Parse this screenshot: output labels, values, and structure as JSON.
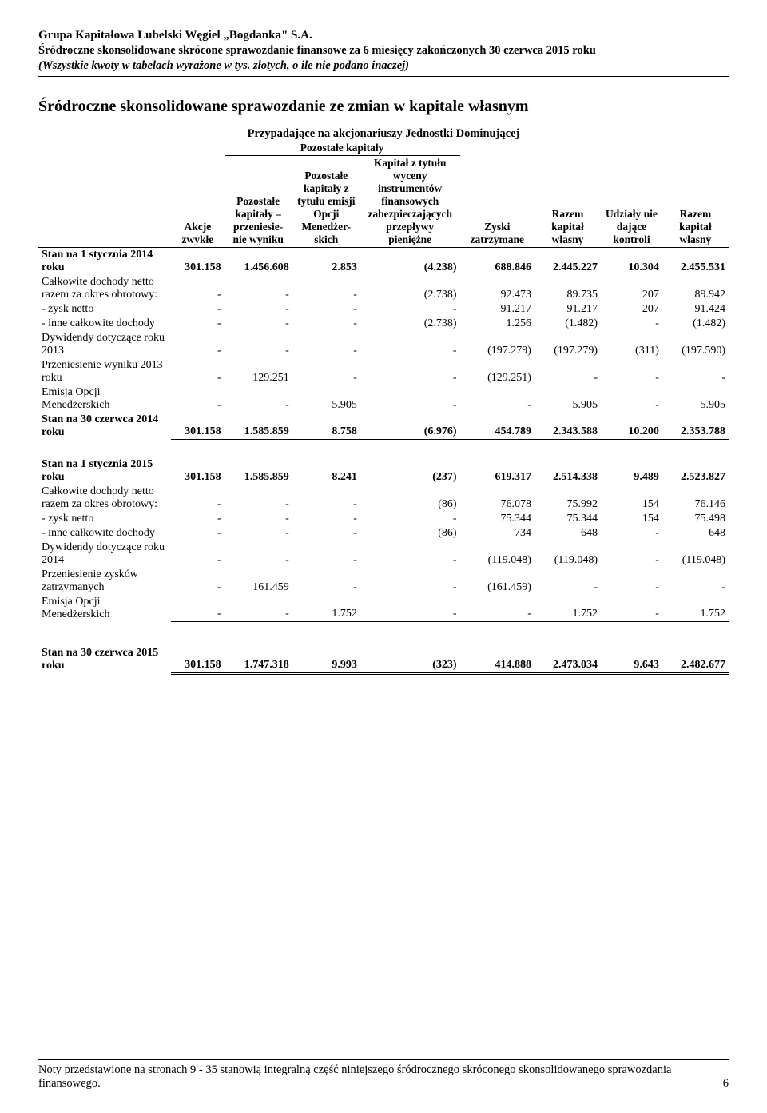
{
  "header": {
    "line1": "Grupa Kapitałowa Lubelski Węgiel „Bogdanka\" S.A.",
    "line2": "Śródroczne skonsolidowane skrócone sprawozdanie finansowe za 6 miesięcy zakończonych 30 czerwca 2015 roku",
    "line3": "(Wszystkie kwoty w tabelach wyrażone w tys. złotych, o ile nie podano inaczej)"
  },
  "title": "Śródroczne skonsolidowane sprawozdanie ze zmian w kapitale własnym",
  "subheader1": "Przypadające na akcjonariuszy Jednostki Dominującej",
  "subheader2": "Pozostałe kapitały",
  "columns": {
    "c1": "Akcje zwykłe",
    "c2": "Pozostałe kapitały – przeniesie-nie wyniku",
    "c3": "Pozostałe kapitały z tytułu emisji Opcji Menedżer-skich",
    "c4": "Kapitał z tytułu wyceny instrumentów finansowych zabezpieczających przepływy pieniężne",
    "c5": "Zyski zatrzymane",
    "c6": "Razem kapitał własny",
    "c7": "Udziały nie dające kontroli",
    "c8": "Razem kapitał własny"
  },
  "rows_a": [
    {
      "label": "Stan na 1 stycznia 2014 roku",
      "bold": true,
      "cells": [
        "301.158",
        "1.456.608",
        "2.853",
        "(4.238)",
        "688.846",
        "2.445.227",
        "10.304",
        "2.455.531"
      ],
      "topline": true,
      "dblbottom": false
    },
    {
      "label": "Całkowite dochody netto razem za okres obrotowy:",
      "bold": false,
      "cells": [
        "-",
        "-",
        "-",
        "(2.738)",
        "92.473",
        "89.735",
        "207",
        "89.942"
      ]
    },
    {
      "label": "- zysk netto",
      "bold": false,
      "cells": [
        "-",
        "-",
        "-",
        "-",
        "91.217",
        "91.217",
        "207",
        "91.424"
      ]
    },
    {
      "label": "- inne całkowite dochody",
      "bold": false,
      "cells": [
        "-",
        "-",
        "-",
        "(2.738)",
        "1.256",
        "(1.482)",
        "-",
        "(1.482)"
      ]
    },
    {
      "label": "Dywidendy dotyczące roku 2013",
      "bold": false,
      "cells": [
        "-",
        "-",
        "-",
        "-",
        "(197.279)",
        "(197.279)",
        "(311)",
        "(197.590)"
      ]
    },
    {
      "label": "Przeniesienie wyniku 2013 roku",
      "bold": false,
      "cells": [
        "-",
        "129.251",
        "-",
        "-",
        "(129.251)",
        "-",
        "-",
        "-"
      ]
    },
    {
      "label": "Emisja Opcji Menedżerskich",
      "bold": false,
      "cells": [
        "-",
        "-",
        "5.905",
        "-",
        "-",
        "5.905",
        "-",
        "5.905"
      ],
      "bottomline": true
    },
    {
      "label": "Stan na 30 czerwca 2014 roku",
      "bold": true,
      "cells": [
        "301.158",
        "1.585.859",
        "8.758",
        "(6.976)",
        "454.789",
        "2.343.588",
        "10.200",
        "2.353.788"
      ],
      "dblbottom": true
    }
  ],
  "rows_b": [
    {
      "label": "Stan na 1 stycznia 2015 roku",
      "bold": true,
      "cells": [
        "301.158",
        "1.585.859",
        "8.241",
        "(237)",
        "619.317",
        "2.514.338",
        "9.489",
        "2.523.827"
      ]
    },
    {
      "label": "Całkowite dochody netto razem za okres obrotowy:",
      "bold": false,
      "cells": [
        "-",
        "-",
        "-",
        "(86)",
        "76.078",
        "75.992",
        "154",
        "76.146"
      ]
    },
    {
      "label": "- zysk netto",
      "bold": false,
      "cells": [
        "-",
        "-",
        "-",
        "-",
        "75.344",
        "75.344",
        "154",
        "75.498"
      ]
    },
    {
      "label": "- inne całkowite dochody",
      "bold": false,
      "cells": [
        "-",
        "-",
        "-",
        "(86)",
        "734",
        "648",
        "-",
        "648"
      ]
    },
    {
      "label": "Dywidendy dotyczące roku 2014",
      "bold": false,
      "cells": [
        "-",
        "-",
        "-",
        "-",
        "(119.048)",
        "(119.048)",
        "-",
        "(119.048)"
      ]
    },
    {
      "label": "Przeniesienie zysków zatrzymanych",
      "bold": false,
      "cells": [
        "-",
        "161.459",
        "-",
        "-",
        "(161.459)",
        "-",
        "-",
        "-"
      ]
    },
    {
      "label": "Emisja Opcji Menedżerskich",
      "bold": false,
      "cells": [
        "-",
        "-",
        "1.752",
        "-",
        "-",
        "1.752",
        "-",
        "1.752"
      ],
      "bottomline": true
    }
  ],
  "rows_c": [
    {
      "label": "Stan na 30 czerwca 2015 roku",
      "bold": true,
      "cells": [
        "301.158",
        "1.747.318",
        "9.993",
        "(323)",
        "414.888",
        "2.473.034",
        "9.643",
        "2.482.677"
      ],
      "dblbottom": true
    }
  ],
  "footer": "Noty przedstawione na stronach 9 - 35 stanowią integralną część niniejszego śródrocznego skróconego skonsolidowanego sprawozdania finansowego.",
  "page_number": "6",
  "col_widths": [
    "160px",
    "64px",
    "82px",
    "82px",
    "120px",
    "90px",
    "80px",
    "74px",
    "80px"
  ]
}
